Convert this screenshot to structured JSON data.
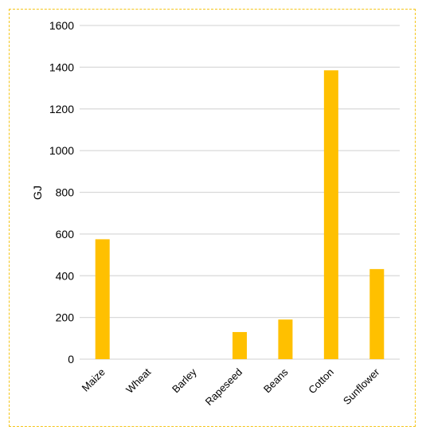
{
  "chart_data": {
    "type": "bar",
    "title": "",
    "xlabel": "",
    "ylabel": "GJ",
    "categories": [
      "Maize",
      "Wheat",
      "Barley",
      "Rapeseed",
      "Beans",
      "Cotton",
      "Sunflower"
    ],
    "values": [
      575,
      0,
      0,
      130,
      190,
      1385,
      432
    ],
    "ylim": [
      0,
      1600
    ],
    "yticks": [
      "0",
      "200",
      "400",
      "600",
      "800",
      "1000",
      "1200",
      "1400",
      "1600"
    ],
    "grid": true,
    "legend": "none",
    "bar_color": "#ffc000",
    "grid_color": "#d9d9d9",
    "frame_color": "#f5c518"
  }
}
